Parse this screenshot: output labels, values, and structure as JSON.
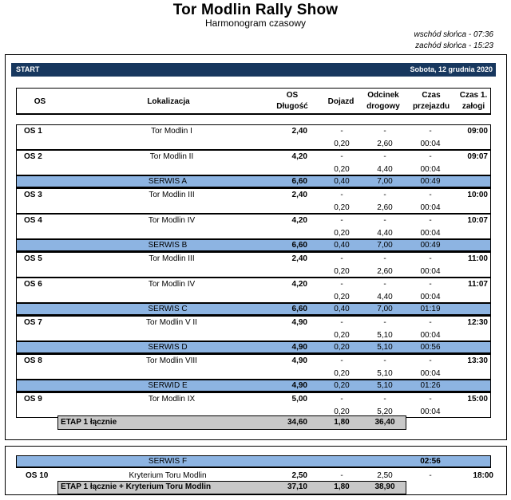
{
  "header": {
    "title": "Tor Modlin Rally Show",
    "subtitle": "Harmonogram czasowy",
    "sunrise": "wschód słońca - 07:36",
    "sunset": "zachód słońca - 15:23"
  },
  "start_bar": {
    "label": "START",
    "date": "Sobota, 12 grudnia 2020"
  },
  "columns": {
    "os": "OS",
    "location": "Lokalizacja",
    "os_length_1": "OS",
    "os_length_2": "Długość",
    "approach": "Dojazd",
    "road_1": "Odcinek",
    "road_2": "drogowy",
    "transit_1": "Czas",
    "transit_2": "przejazdu",
    "crew_1": "Czas 1.",
    "crew_2": "załogi"
  },
  "stages": [
    {
      "os": "OS 1",
      "location": "Tor Modlin I",
      "length": "2,40",
      "d1": "-",
      "o1": "-",
      "t1": "-",
      "crew": "09:00",
      "d2": "0,20",
      "o2": "2,60",
      "t2": "00:04"
    },
    {
      "os": "OS 2",
      "location": "Tor Modlin II",
      "length": "4,20",
      "d1": "-",
      "o1": "-",
      "t1": "-",
      "crew": "09:07",
      "d2": "0,20",
      "o2": "4,40",
      "t2": "00:04"
    },
    {
      "service": true,
      "location": "SERWIS A",
      "length": "6,60",
      "d": "0,40",
      "o": "7,00",
      "t": "00:49"
    },
    {
      "os": "OS 3",
      "location": "Tor Modlin III",
      "length": "2,40",
      "d1": "-",
      "o1": "-",
      "t1": "-",
      "crew": "10:00",
      "d2": "0,20",
      "o2": "2,60",
      "t2": "00:04"
    },
    {
      "os": "OS 4",
      "location": "Tor Modlin IV",
      "length": "4,20",
      "d1": "-",
      "o1": "-",
      "t1": "-",
      "crew": "10:07",
      "d2": "0,20",
      "o2": "4,40",
      "t2": "00:04"
    },
    {
      "service": true,
      "location": "SERWIS B",
      "length": "6,60",
      "d": "0,40",
      "o": "7,00",
      "t": "00:49"
    },
    {
      "os": "OS 5",
      "location": "Tor Modlin III",
      "length": "2,40",
      "d1": "-",
      "o1": "-",
      "t1": "-",
      "crew": "11:00",
      "d2": "0,20",
      "o2": "2,60",
      "t2": "00:04"
    },
    {
      "os": "OS 6",
      "location": "Tor Modlin IV",
      "length": "4,20",
      "d1": "-",
      "o1": "-",
      "t1": "-",
      "crew": "11:07",
      "d2": "0,20",
      "o2": "4,40",
      "t2": "00:04"
    },
    {
      "service": true,
      "location": "SERWIS C",
      "length": "6,60",
      "d": "0,40",
      "o": "7,00",
      "t": "01:19"
    },
    {
      "os": "OS 7",
      "location": "Tor Modlin V II",
      "length": "4,90",
      "d1": "-",
      "o1": "-",
      "t1": "-",
      "crew": "12:30",
      "d2": "0,20",
      "o2": "5,10",
      "t2": "00:04"
    },
    {
      "service": true,
      "location": "SERWIS D",
      "length": "4,90",
      "d": "0,20",
      "o": "5,10",
      "t": "00:56"
    },
    {
      "os": "OS 8",
      "location": "Tor Modlin VIII",
      "length": "4,90",
      "d1": "-",
      "o1": "-",
      "t1": "-",
      "crew": "13:30",
      "d2": "0,20",
      "o2": "5,10",
      "t2": "00:04"
    },
    {
      "service": true,
      "location": "SERWID E",
      "length": "4,90",
      "d": "0,20",
      "o": "5,10",
      "t": "01:26"
    },
    {
      "os": "OS 9",
      "location": "Tor Modlin IX",
      "length": "5,00",
      "d1": "-",
      "o1": "-",
      "t1": "-",
      "crew": "15:00",
      "d2": "0,20",
      "o2": "5,20",
      "t2": "00:04"
    }
  ],
  "etap1": {
    "label": "ETAP 1 łącznie",
    "length": "34,60",
    "approach": "1,80",
    "road": "36,40"
  },
  "section2": {
    "service": {
      "location": "SERWIS F",
      "time": "02:56"
    },
    "os10": {
      "os": "OS 10",
      "location": "Kryterium Toru Modlin",
      "length": "2,50",
      "approach": "-",
      "road": "2,50",
      "transit": "-",
      "crew": "18:00"
    },
    "total": {
      "label": "ETAP 1 łącznie + Kryterium Toru Modlin",
      "length": "37,10",
      "approach": "1,80",
      "road": "38,90"
    }
  },
  "colors": {
    "start_bar": "#17375e",
    "service_row": "#8db4e2",
    "summary": "#c8c8c8"
  }
}
